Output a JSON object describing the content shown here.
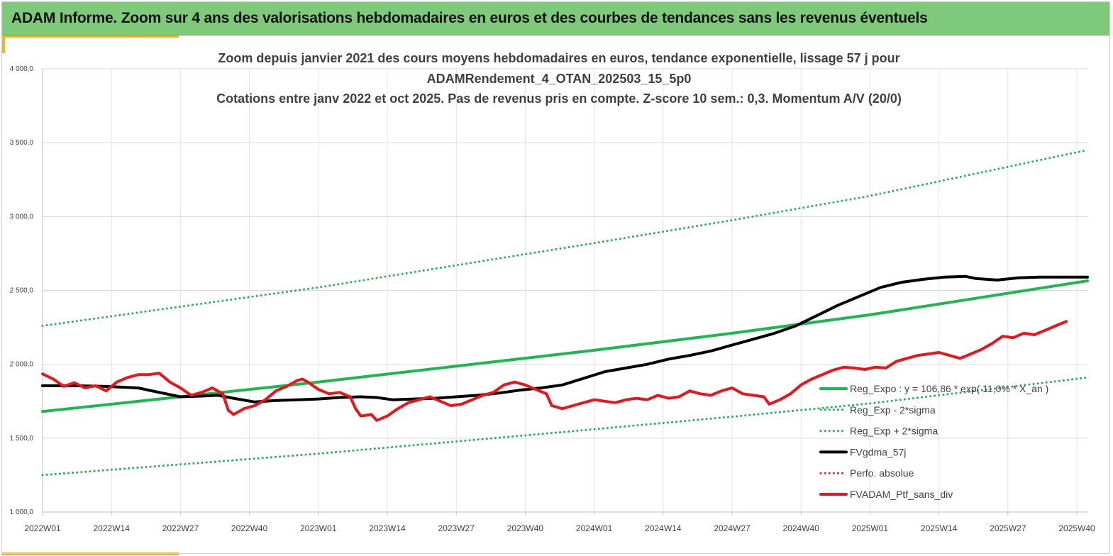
{
  "header": {
    "title": "ADAM Informe. Zoom sur 4 ans des valorisations hebdomadaires en euros et des courbes de tendances sans les revenus éventuels"
  },
  "colors": {
    "banner": "#7ec97a",
    "accent": "#f2b61c",
    "trend": "#1db64f",
    "bands": "#1db64f",
    "smoothed": "#000000",
    "portfolio": "#e8151b",
    "perfo": "#c0392b"
  },
  "chart_data": {
    "type": "line",
    "title_lines": [
      "Zoom depuis janvier 2021 des cours moyens hebdomadaires  en euros, tendance exponentielle, lissage 57 j pour",
      "ADAMRendement_4_OTAN_202503_15_5p0",
      "Cotations  entre janv 2022 et oct 2025. Pas de revenus pris en compte. Z-score 10 sem.: 0,3. Momentum A/V (20/0)"
    ],
    "ylim": [
      1000,
      4000
    ],
    "yticks": [
      {
        "value": 1000,
        "label": "1 000,0"
      },
      {
        "value": 1500,
        "label": "1 500,0"
      },
      {
        "value": 2000,
        "label": "2 000,0"
      },
      {
        "value": 2500,
        "label": "2 500,0"
      },
      {
        "value": 3000,
        "label": "3 000,0"
      },
      {
        "value": 3500,
        "label": "3 500,0"
      },
      {
        "value": 4000,
        "label": "4 000,0"
      }
    ],
    "xlim": [
      0,
      197
    ],
    "xticks": [
      {
        "index": 0,
        "label": "2022W01"
      },
      {
        "index": 13,
        "label": "2022W14"
      },
      {
        "index": 26,
        "label": "2022W27"
      },
      {
        "index": 39,
        "label": "2022W40"
      },
      {
        "index": 52,
        "label": "2023W01"
      },
      {
        "index": 65,
        "label": "2023W14"
      },
      {
        "index": 78,
        "label": "2023W27"
      },
      {
        "index": 91,
        "label": "2023W40"
      },
      {
        "index": 104,
        "label": "2024W01"
      },
      {
        "index": 117,
        "label": "2024W14"
      },
      {
        "index": 130,
        "label": "2024W27"
      },
      {
        "index": 143,
        "label": "2024W40"
      },
      {
        "index": 156,
        "label": "2025W01"
      },
      {
        "index": 169,
        "label": "2025W14"
      },
      {
        "index": 182,
        "label": "2025W27"
      },
      {
        "index": 195,
        "label": "2025W40"
      }
    ],
    "grid": true,
    "legend_position": "bottom-right",
    "series": [
      {
        "name": "Reg_Expo : y = 106,86 * exp( 11,0% * X_an )",
        "style": "solid-thick",
        "color": "#1db64f",
        "points": [
          [
            0,
            1680
          ],
          [
            52,
            1880
          ],
          [
            104,
            2095
          ],
          [
            130,
            2210
          ],
          [
            156,
            2335
          ],
          [
            197,
            2565
          ]
        ]
      },
      {
        "name": "Reg_Exp - 2*sigma",
        "style": "dotted",
        "color": "#1db64f",
        "points": [
          [
            0,
            1250
          ],
          [
            52,
            1395
          ],
          [
            104,
            1560
          ],
          [
            130,
            1645
          ],
          [
            156,
            1735
          ],
          [
            197,
            1910
          ]
        ]
      },
      {
        "name": "Reg_Exp + 2*sigma",
        "style": "dotted",
        "color": "#1db64f",
        "points": [
          [
            0,
            2260
          ],
          [
            52,
            2520
          ],
          [
            104,
            2820
          ],
          [
            130,
            2975
          ],
          [
            156,
            3140
          ],
          [
            197,
            3450
          ]
        ]
      },
      {
        "name": "FVgdma_57j",
        "style": "solid-thick",
        "color": "#000000",
        "points": [
          [
            0,
            1855
          ],
          [
            6,
            1855
          ],
          [
            12,
            1850
          ],
          [
            18,
            1840
          ],
          [
            22,
            1810
          ],
          [
            26,
            1780
          ],
          [
            30,
            1785
          ],
          [
            33,
            1790
          ],
          [
            36,
            1770
          ],
          [
            40,
            1745
          ],
          [
            44,
            1755
          ],
          [
            48,
            1760
          ],
          [
            52,
            1765
          ],
          [
            56,
            1775
          ],
          [
            60,
            1780
          ],
          [
            63,
            1775
          ],
          [
            66,
            1760
          ],
          [
            70,
            1765
          ],
          [
            74,
            1770
          ],
          [
            78,
            1780
          ],
          [
            82,
            1790
          ],
          [
            86,
            1805
          ],
          [
            90,
            1825
          ],
          [
            94,
            1840
          ],
          [
            98,
            1860
          ],
          [
            102,
            1905
          ],
          [
            106,
            1950
          ],
          [
            110,
            1975
          ],
          [
            114,
            2000
          ],
          [
            118,
            2035
          ],
          [
            122,
            2060
          ],
          [
            126,
            2090
          ],
          [
            130,
            2130
          ],
          [
            134,
            2170
          ],
          [
            138,
            2210
          ],
          [
            142,
            2260
          ],
          [
            146,
            2330
          ],
          [
            150,
            2400
          ],
          [
            154,
            2460
          ],
          [
            158,
            2520
          ],
          [
            162,
            2555
          ],
          [
            166,
            2575
          ],
          [
            170,
            2590
          ],
          [
            174,
            2595
          ],
          [
            176,
            2580
          ],
          [
            180,
            2570
          ],
          [
            184,
            2585
          ],
          [
            188,
            2590
          ],
          [
            197,
            2590
          ]
        ]
      },
      {
        "name": "Perfo. absolue",
        "style": "dotted",
        "color": "#c0392b",
        "points": []
      },
      {
        "name": "FVADAM_Ptf_sans_div",
        "style": "solid-thick",
        "color": "#e8151b",
        "points": [
          [
            0,
            1935
          ],
          [
            2,
            1900
          ],
          [
            4,
            1850
          ],
          [
            6,
            1875
          ],
          [
            8,
            1840
          ],
          [
            10,
            1855
          ],
          [
            12,
            1820
          ],
          [
            14,
            1880
          ],
          [
            16,
            1910
          ],
          [
            18,
            1930
          ],
          [
            20,
            1930
          ],
          [
            22,
            1940
          ],
          [
            24,
            1880
          ],
          [
            26,
            1840
          ],
          [
            28,
            1790
          ],
          [
            30,
            1810
          ],
          [
            32,
            1840
          ],
          [
            34,
            1800
          ],
          [
            35,
            1690
          ],
          [
            36,
            1660
          ],
          [
            38,
            1700
          ],
          [
            40,
            1720
          ],
          [
            42,
            1760
          ],
          [
            44,
            1820
          ],
          [
            46,
            1850
          ],
          [
            48,
            1890
          ],
          [
            49,
            1900
          ],
          [
            50,
            1880
          ],
          [
            52,
            1830
          ],
          [
            54,
            1800
          ],
          [
            56,
            1810
          ],
          [
            58,
            1780
          ],
          [
            59,
            1700
          ],
          [
            60,
            1650
          ],
          [
            62,
            1660
          ],
          [
            63,
            1620
          ],
          [
            65,
            1650
          ],
          [
            67,
            1700
          ],
          [
            69,
            1740
          ],
          [
            71,
            1760
          ],
          [
            73,
            1780
          ],
          [
            75,
            1750
          ],
          [
            77,
            1720
          ],
          [
            79,
            1730
          ],
          [
            81,
            1760
          ],
          [
            83,
            1790
          ],
          [
            85,
            1810
          ],
          [
            87,
            1860
          ],
          [
            89,
            1880
          ],
          [
            91,
            1860
          ],
          [
            93,
            1830
          ],
          [
            95,
            1800
          ],
          [
            96,
            1720
          ],
          [
            98,
            1700
          ],
          [
            100,
            1720
          ],
          [
            102,
            1740
          ],
          [
            104,
            1760
          ],
          [
            106,
            1750
          ],
          [
            108,
            1740
          ],
          [
            110,
            1760
          ],
          [
            112,
            1770
          ],
          [
            114,
            1760
          ],
          [
            116,
            1790
          ],
          [
            118,
            1770
          ],
          [
            120,
            1780
          ],
          [
            122,
            1820
          ],
          [
            124,
            1800
          ],
          [
            126,
            1790
          ],
          [
            128,
            1820
          ],
          [
            130,
            1840
          ],
          [
            132,
            1800
          ],
          [
            134,
            1790
          ],
          [
            136,
            1780
          ],
          [
            137,
            1730
          ],
          [
            139,
            1760
          ],
          [
            141,
            1800
          ],
          [
            143,
            1860
          ],
          [
            145,
            1900
          ],
          [
            147,
            1930
          ],
          [
            149,
            1960
          ],
          [
            151,
            1980
          ],
          [
            153,
            1975
          ],
          [
            155,
            1965
          ],
          [
            157,
            1980
          ],
          [
            159,
            1975
          ],
          [
            161,
            2020
          ],
          [
            163,
            2040
          ],
          [
            165,
            2060
          ],
          [
            167,
            2070
          ],
          [
            169,
            2080
          ],
          [
            171,
            2060
          ],
          [
            173,
            2040
          ],
          [
            175,
            2070
          ],
          [
            177,
            2100
          ],
          [
            179,
            2140
          ],
          [
            181,
            2190
          ],
          [
            183,
            2180
          ],
          [
            185,
            2210
          ],
          [
            187,
            2200
          ],
          [
            189,
            2230
          ],
          [
            191,
            2260
          ],
          [
            193,
            2290
          ]
        ]
      }
    ]
  }
}
